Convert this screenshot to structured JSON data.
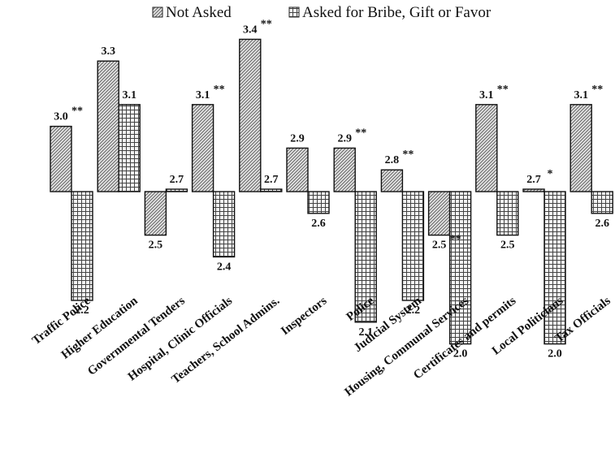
{
  "chart_data": {
    "type": "bar",
    "baseline": 2.7,
    "ylim": [
      1.9,
      3.5
    ],
    "categories": [
      "Traffic Police",
      "Higher Education",
      "Governmental Tenders",
      "Hospital, Clinic Officials",
      "Teachers, School Admins.",
      "Inspectors",
      "Police",
      "Judicial System",
      "Housing, Communal Services",
      "Certificates and permits",
      "Local Politicians",
      "Tax Officials"
    ],
    "series": [
      {
        "name": "Not Asked",
        "pattern": "diagonal-hatch",
        "values": [
          3.0,
          3.3,
          2.5,
          3.1,
          3.4,
          2.9,
          2.9,
          2.8,
          2.5,
          3.1,
          2.7,
          3.1
        ],
        "labels": [
          "3.0",
          "3.3",
          "2.5",
          "3.1",
          "3.4",
          "2.9",
          "2.9",
          "2.8",
          "2.5",
          "3.1",
          "2.7",
          "3.1"
        ]
      },
      {
        "name": "Asked for Bribe, Gift or Favor",
        "pattern": "grid",
        "values": [
          2.2,
          3.1,
          2.7,
          2.4,
          2.7,
          2.6,
          2.1,
          2.2,
          2.0,
          2.5,
          2.0,
          2.6
        ],
        "labels": [
          "2.2",
          "3.1",
          "2.7",
          "2.4",
          "2.7",
          "2.6",
          "2.1",
          "2.2",
          "2.0",
          "2.5",
          "2.0",
          "2.6"
        ]
      }
    ],
    "significance": [
      "**",
      "",
      "",
      "**",
      "**",
      "",
      "**",
      "**",
      "**",
      "**",
      "*",
      "**"
    ],
    "grid": false,
    "legend_position": "top-center"
  }
}
